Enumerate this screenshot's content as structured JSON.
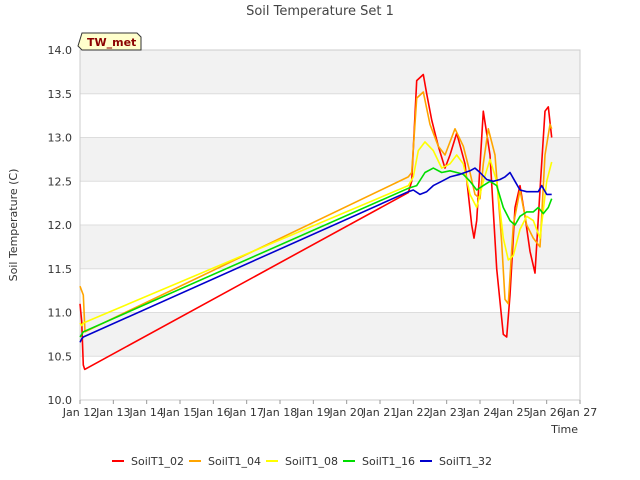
{
  "chart_data": {
    "type": "line",
    "title": "Soil Temperature Set 1",
    "xlabel": "Time",
    "ylabel": "Soil Temperature (C)",
    "badge": "TW_met",
    "ylim": [
      10.0,
      14.0
    ],
    "xlim": [
      0,
      15
    ],
    "yticks": [
      "10.0",
      "10.5",
      "11.0",
      "11.5",
      "12.0",
      "12.5",
      "13.0",
      "13.5",
      "14.0"
    ],
    "xticks": [
      "Jan 12",
      "Jan 13",
      "Jan 14",
      "Jan 15",
      "Jan 16",
      "Jan 17",
      "Jan 18",
      "Jan 19",
      "Jan 20",
      "Jan 21",
      "Jan 22",
      "Jan 23",
      "Jan 24",
      "Jan 25",
      "Jan 26",
      "Jan 27"
    ],
    "series": [
      {
        "name": "SoilT1_02",
        "color": "#ff0000",
        "x": [
          0.0,
          0.05,
          0.1,
          0.14,
          9.85,
          9.95,
          10.1,
          10.3,
          10.4,
          10.55,
          10.75,
          10.95,
          11.1,
          11.3,
          11.55,
          11.75,
          11.82,
          11.9,
          12.1,
          12.3,
          12.5,
          12.7,
          12.8,
          12.9,
          13.05,
          13.2,
          13.35,
          13.5,
          13.65,
          13.8,
          13.95,
          14.05,
          14.15
        ],
        "values": [
          11.1,
          10.9,
          10.4,
          10.35,
          12.37,
          12.5,
          13.65,
          13.72,
          13.5,
          13.2,
          12.9,
          12.65,
          12.8,
          13.05,
          12.7,
          12.0,
          11.85,
          12.05,
          13.3,
          12.8,
          11.5,
          10.75,
          10.72,
          11.2,
          12.2,
          12.45,
          12.1,
          11.7,
          11.45,
          12.4,
          13.3,
          13.35,
          13.0
        ]
      },
      {
        "name": "SoilT1_04",
        "color": "#ffa500",
        "x": [
          0.0,
          0.1,
          0.15,
          9.85,
          9.95,
          10.1,
          10.3,
          10.5,
          10.75,
          10.95,
          11.1,
          11.25,
          11.5,
          11.7,
          11.85,
          12.0,
          12.1,
          12.25,
          12.45,
          12.65,
          12.75,
          12.85,
          13.0,
          13.2,
          13.4,
          13.6,
          13.8,
          13.95,
          14.1,
          14.15
        ],
        "values": [
          11.3,
          11.2,
          10.78,
          12.55,
          12.6,
          13.45,
          13.52,
          13.15,
          12.9,
          12.8,
          12.95,
          13.1,
          12.9,
          12.6,
          12.35,
          12.3,
          12.7,
          13.1,
          12.8,
          11.8,
          11.15,
          11.1,
          12.0,
          12.4,
          12.0,
          11.85,
          11.75,
          12.8,
          13.15,
          13.1
        ]
      },
      {
        "name": "SoilT1_08",
        "color": "#ffff00",
        "x": [
          0.0,
          0.05,
          0.1,
          9.85,
          10.0,
          10.15,
          10.35,
          10.6,
          10.85,
          11.1,
          11.3,
          11.5,
          11.7,
          11.9,
          12.1,
          12.3,
          12.5,
          12.7,
          12.85,
          13.0,
          13.2,
          13.4,
          13.6,
          13.8,
          14.0,
          14.15
        ],
        "values": [
          10.88,
          10.85,
          10.88,
          12.45,
          12.55,
          12.85,
          12.95,
          12.85,
          12.65,
          12.7,
          12.8,
          12.7,
          12.35,
          12.2,
          12.5,
          12.75,
          12.5,
          11.85,
          11.6,
          11.65,
          11.95,
          12.1,
          12.05,
          11.85,
          12.5,
          12.72
        ]
      },
      {
        "name": "SoilT1_16",
        "color": "#00dd00",
        "x": [
          0.0,
          0.05,
          0.1,
          9.85,
          10.1,
          10.35,
          10.6,
          10.85,
          11.1,
          11.3,
          11.5,
          11.7,
          11.9,
          12.1,
          12.3,
          12.5,
          12.7,
          12.9,
          13.05,
          13.2,
          13.4,
          13.6,
          13.75,
          13.9,
          14.05,
          14.15
        ],
        "values": [
          10.72,
          10.75,
          10.78,
          12.42,
          12.45,
          12.6,
          12.65,
          12.6,
          12.62,
          12.6,
          12.58,
          12.5,
          12.4,
          12.45,
          12.5,
          12.45,
          12.2,
          12.05,
          12.0,
          12.1,
          12.15,
          12.15,
          12.2,
          12.13,
          12.2,
          12.3
        ]
      },
      {
        "name": "SoilT1_32",
        "color": "#0000cc",
        "x": [
          0.0,
          0.05,
          0.1,
          9.85,
          10.0,
          10.2,
          10.4,
          10.6,
          10.85,
          11.1,
          11.4,
          11.7,
          11.85,
          12.0,
          12.2,
          12.4,
          12.6,
          12.75,
          12.9,
          13.05,
          13.2,
          13.4,
          13.6,
          13.75,
          13.85,
          14.0,
          14.15
        ],
        "values": [
          10.66,
          10.7,
          10.72,
          12.38,
          12.4,
          12.35,
          12.38,
          12.45,
          12.5,
          12.55,
          12.58,
          12.62,
          12.65,
          12.6,
          12.52,
          12.5,
          12.52,
          12.55,
          12.6,
          12.5,
          12.4,
          12.38,
          12.38,
          12.38,
          12.45,
          12.35,
          12.35
        ]
      }
    ]
  }
}
